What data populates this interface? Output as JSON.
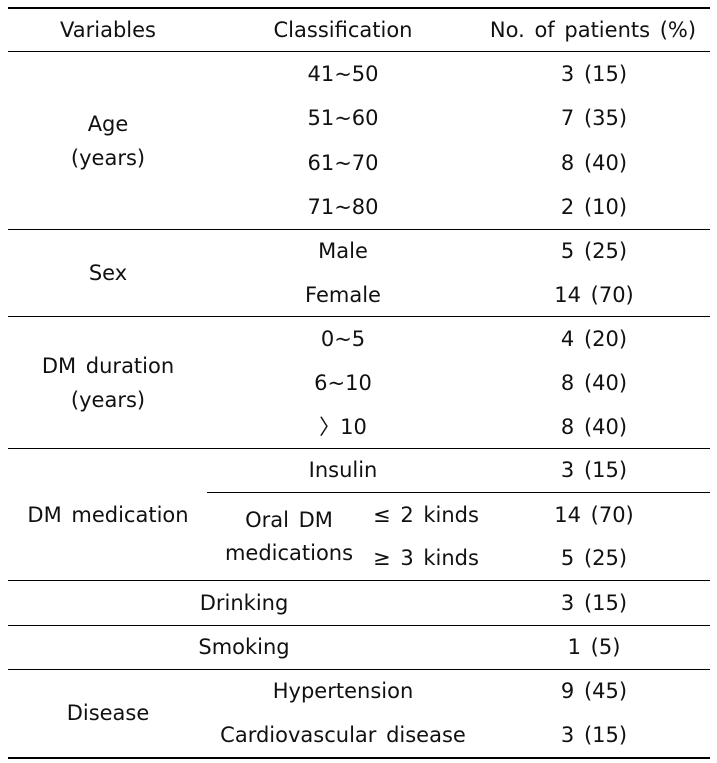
{
  "header": {
    "variables": "Variables",
    "classification": "Classification",
    "patients": "No. of patients (%)"
  },
  "age": {
    "label_line1": "Age",
    "label_line2": "(years)",
    "rows": [
      {
        "class": "41~50",
        "value": "3 (15)"
      },
      {
        "class": "51~60",
        "value": "7 (35)"
      },
      {
        "class": "61~70",
        "value": "8 (40)"
      },
      {
        "class": "71~80",
        "value": "2 (10)"
      }
    ]
  },
  "sex": {
    "label": "Sex",
    "rows": [
      {
        "class": "Male",
        "value": "5 (25)"
      },
      {
        "class": "Female",
        "value": "14 (70)"
      }
    ]
  },
  "dm_duration": {
    "label_line1": "DM duration",
    "label_line2": "(years)",
    "rows": [
      {
        "class": "0~5",
        "value": "4 (20)"
      },
      {
        "class": "6~10",
        "value": "8 (40)"
      },
      {
        "class": "〉10",
        "value": "8 (40)"
      }
    ]
  },
  "dm_medication": {
    "label": "DM medication",
    "insulin": {
      "class": "Insulin",
      "value": "3 (15)"
    },
    "oral_line1": "Oral DM",
    "oral_line2": "medications",
    "oral_rows": [
      {
        "class": "≤ 2 kinds",
        "value": "14 (70)"
      },
      {
        "class": "≥ 3 kinds",
        "value": "5 (25)"
      }
    ]
  },
  "drinking": {
    "label": "Drinking",
    "value": "3 (15)"
  },
  "smoking": {
    "label": "Smoking",
    "value": "1 (5)"
  },
  "disease": {
    "label": "Disease",
    "rows": [
      {
        "class": "Hypertension",
        "value": "9 (45)"
      },
      {
        "class": "Cardiovascular disease",
        "value": "3 (15)"
      }
    ]
  }
}
